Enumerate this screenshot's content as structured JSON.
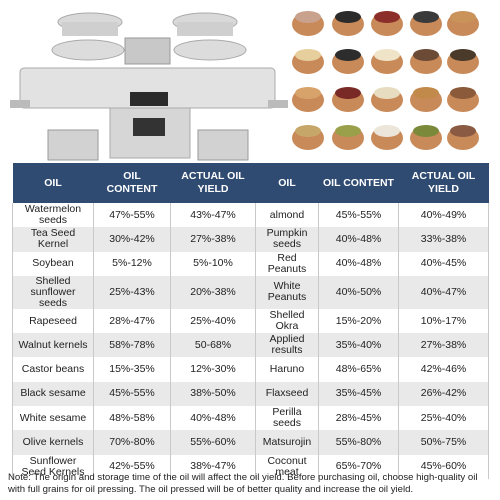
{
  "table": {
    "header": [
      "OIL",
      "OIL CONTENT",
      "ACTUAL OIL YIELD",
      "OIL",
      "OIL CONTENT",
      "ACTUAL OIL YIELD"
    ],
    "rows": [
      [
        "Watermelon seeds",
        "47%-55%",
        "43%-47%",
        "almond",
        "45%-55%",
        "40%-49%"
      ],
      [
        "Tea Seed Kernel",
        "30%-42%",
        "27%-38%",
        "Pumpkin seeds",
        "40%-48%",
        "33%-38%"
      ],
      [
        "Soybean",
        "5%-12%",
        "5%-10%",
        "Red Peanuts",
        "40%-48%",
        "40%-45%"
      ],
      [
        "Shelled sunflower seeds",
        "25%-43%",
        "20%-38%",
        "White Peanuts",
        "40%-50%",
        "40%-47%"
      ],
      [
        "Rapeseed",
        "28%-47%",
        "25%-40%",
        "Shelled Okra",
        "15%-20%",
        "10%-17%"
      ],
      [
        "Walnut kernels",
        "58%-78%",
        "50-68%",
        "Applied results",
        "35%-40%",
        "27%-38%"
      ],
      [
        "Castor beans",
        "15%-35%",
        "12%-30%",
        "Haruno",
        "48%-65%",
        "42%-46%"
      ],
      [
        "Black sesame",
        "45%-55%",
        "38%-50%",
        "Flaxseed",
        "35%-45%",
        "26%-42%"
      ],
      [
        "White sesame",
        "48%-58%",
        "40%-48%",
        "Perilla seeds",
        "28%-45%",
        "25%-40%"
      ],
      [
        "Olive kernels",
        "70%-80%",
        "55%-60%",
        "Matsurojin",
        "55%-80%",
        "50%-75%"
      ],
      [
        "Sunflower Seed Kernels",
        "42%-55%",
        "38%-47%",
        "Coconut meat",
        "65%-70%",
        "45%-60%"
      ]
    ]
  },
  "note": "Note: The origin and storage time of the oil will affect the oil yield. Before purchasing oil, choose high-quality oil with full grains for oil pressing. The oil pressed will be of better quality and increase the oil yield."
}
